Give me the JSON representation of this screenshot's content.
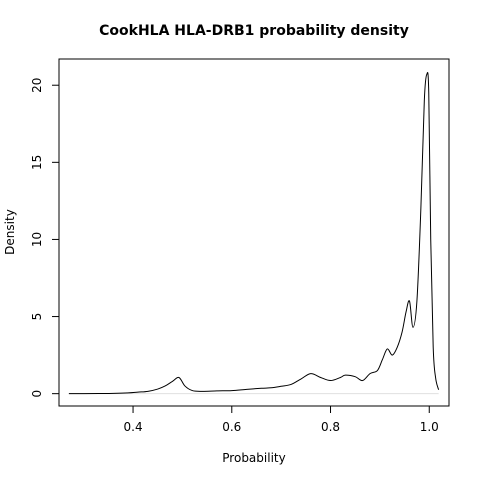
{
  "chart_data": {
    "type": "line",
    "title": "CookHLA HLA-DRB1 probability density",
    "xlabel": "Probability",
    "ylabel": "Density",
    "xlim": [
      0.25,
      1.04
    ],
    "ylim": [
      -0.8,
      21.7
    ],
    "x_ticks": [
      0.4,
      0.6,
      0.8,
      1.0
    ],
    "x_tick_labels": [
      "0.4",
      "0.6",
      "0.8",
      "1.0"
    ],
    "y_ticks": [
      0,
      5,
      10,
      15,
      20
    ],
    "y_tick_labels": [
      "0",
      "5",
      "10",
      "15",
      "20"
    ],
    "grid": false,
    "legend": "none",
    "line_color": "#000000",
    "baseline_color": "#e0e0e0",
    "series": [
      {
        "x": [
          0.27,
          0.3,
          0.33,
          0.36,
          0.39,
          0.41,
          0.43,
          0.45,
          0.465,
          0.48,
          0.493,
          0.505,
          0.52,
          0.54,
          0.57,
          0.6,
          0.63,
          0.66,
          0.68,
          0.7,
          0.72,
          0.74,
          0.76,
          0.78,
          0.8,
          0.82,
          0.83,
          0.85,
          0.865,
          0.88,
          0.895,
          0.905,
          0.915,
          0.925,
          0.935,
          0.945,
          0.953,
          0.96,
          0.967,
          0.975,
          0.983,
          0.99,
          0.995,
          0.999,
          1.003,
          1.008,
          1.013,
          1.019
        ],
        "y": [
          0.0,
          0.0,
          0.01,
          0.02,
          0.05,
          0.1,
          0.15,
          0.3,
          0.5,
          0.8,
          1.05,
          0.5,
          0.2,
          0.15,
          0.18,
          0.2,
          0.28,
          0.35,
          0.38,
          0.48,
          0.6,
          0.95,
          1.3,
          1.05,
          0.85,
          1.05,
          1.2,
          1.1,
          0.85,
          1.3,
          1.5,
          2.2,
          2.9,
          2.5,
          3.0,
          4.0,
          5.3,
          6.0,
          4.3,
          6.0,
          12.0,
          19.0,
          20.7,
          19.5,
          10.0,
          3.0,
          1.0,
          0.25
        ]
      }
    ]
  }
}
